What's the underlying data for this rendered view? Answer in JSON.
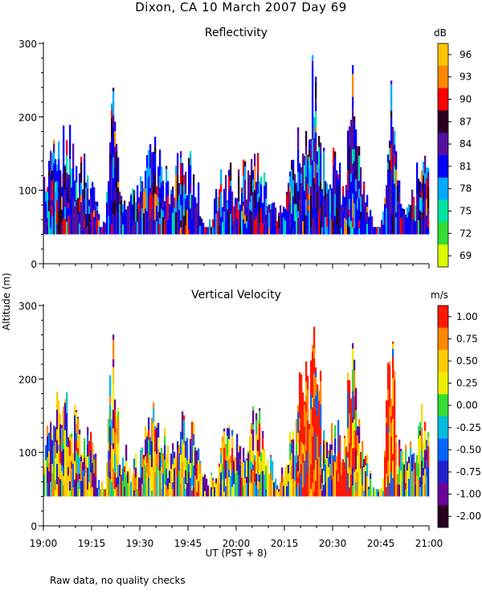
{
  "page": {
    "title": "Dixon, CA 10 March 2007  Day  69",
    "footnote": "Raw data, no quality checks",
    "ylabel": "Altitude (m)",
    "xlabel": "UT  (PST + 8)"
  },
  "chart_data": [
    {
      "type": "heatmap",
      "title": "Reflectivity",
      "ylabel": "Altitude (m)",
      "ylim": [
        0,
        300
      ],
      "yticks": [
        "0",
        "100",
        "200",
        "300"
      ],
      "xlim": [
        "19:00",
        "21:00"
      ],
      "colorbar": {
        "unit": "dB",
        "labels": [
          "96",
          "93",
          "90",
          "87",
          "84",
          "81",
          "78",
          "75",
          "72",
          "69"
        ],
        "colors": [
          "#ffc400",
          "#ff8800",
          "#ff0000",
          "#2a0022",
          "#55109e",
          "#0000ff",
          "#00aaff",
          "#00e5a0",
          "#33dd33",
          "#ddff00"
        ]
      },
      "data_altitude_range_m": [
        40,
        300
      ]
    },
    {
      "type": "heatmap",
      "title": "Vertical Velocity",
      "ylabel": "Altitude (m)",
      "ylim": [
        0,
        300
      ],
      "yticks": [
        "0",
        "100",
        "200",
        "300"
      ],
      "xlim": [
        "19:00",
        "21:00"
      ],
      "colorbar": {
        "unit": "m/s",
        "labels": [
          "1.00",
          "0.75",
          "0.50",
          "0.25",
          "0.00",
          "-0.25",
          "-0.50",
          "-0.75",
          "-1.00",
          "-2.00"
        ],
        "colors": [
          "#ff1800",
          "#ff8800",
          "#ffcc00",
          "#eeee00",
          "#33dd33",
          "#00bbdd",
          "#0066ff",
          "#2222cc",
          "#6a0099",
          "#2a0022"
        ]
      },
      "data_altitude_range_m": [
        40,
        300
      ]
    }
  ],
  "xticks": [
    "19:00",
    "19:15",
    "19:30",
    "19:45",
    "20:00",
    "20:15",
    "20:30",
    "20:45",
    "21:00"
  ]
}
